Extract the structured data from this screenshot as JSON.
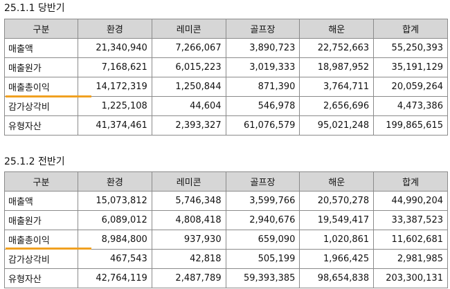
{
  "tables": [
    {
      "title": "25.1.1 당반기",
      "headers": [
        "구분",
        "환경",
        "레미콘",
        "골프장",
        "해운",
        "합계"
      ],
      "rows": [
        {
          "label": "매출액",
          "values": [
            "21,340,940",
            "7,266,067",
            "3,890,723",
            "22,752,663",
            "55,250,393"
          ]
        },
        {
          "label": "매출원가",
          "values": [
            "7,168,621",
            "6,015,223",
            "3,019,333",
            "18,987,952",
            "35,191,129"
          ]
        },
        {
          "label": "매출총이익",
          "values": [
            "14,172,319",
            "1,250,844",
            "871,390",
            "3,764,711",
            "20,059,264"
          ]
        },
        {
          "label": "감가상각비",
          "values": [
            "1,225,108",
            "44,604",
            "546,978",
            "2,656,696",
            "4,473,386"
          ]
        },
        {
          "label": "유형자산",
          "values": [
            "41,374,461",
            "2,393,327",
            "61,076,579",
            "95,021,248",
            "199,865,615"
          ]
        }
      ]
    },
    {
      "title": "25.1.2 전반기",
      "headers": [
        "구분",
        "환경",
        "레미콘",
        "골프장",
        "해운",
        "합계"
      ],
      "rows": [
        {
          "label": "매출액",
          "values": [
            "15,073,812",
            "5,746,348",
            "3,599,766",
            "20,570,278",
            "44,990,204"
          ]
        },
        {
          "label": "매출원가",
          "values": [
            "6,089,012",
            "4,808,418",
            "2,940,676",
            "19,549,417",
            "33,387,523"
          ]
        },
        {
          "label": "매출총이익",
          "values": [
            "8,984,800",
            "937,930",
            "659,090",
            "1,020,861",
            "11,602,681"
          ]
        },
        {
          "label": "감가상각비",
          "values": [
            "467,543",
            "42,818",
            "505,199",
            "1,966,425",
            "2,981,985"
          ]
        },
        {
          "label": "유형자산",
          "values": [
            "42,764,119",
            "2,487,789",
            "59,393,385",
            "98,654,838",
            "203,300,131"
          ]
        }
      ]
    }
  ],
  "highlight_color": "#f0a020",
  "header_bg": "#d6d6d6"
}
